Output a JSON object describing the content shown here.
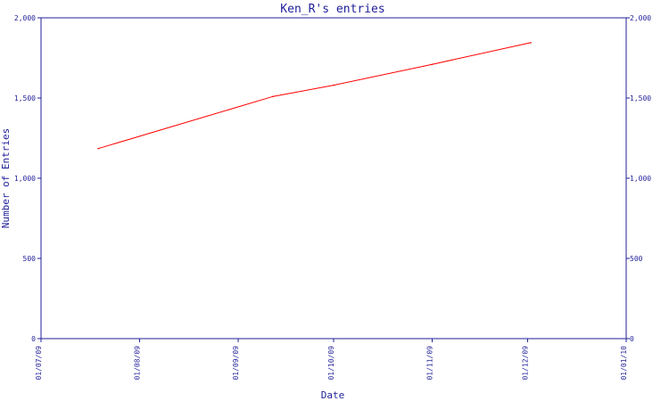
{
  "chart_data": {
    "type": "line",
    "title": "Ken_R's entries",
    "xlabel": "Date",
    "ylabel": "Number of Entries",
    "x_ticks": [
      "01/07/09",
      "01/08/09",
      "01/09/09",
      "01/10/09",
      "01/11/09",
      "01/12/09",
      "01/01/10"
    ],
    "y_ticks": [
      "0",
      "500",
      "1,000",
      "1,500",
      "2,000"
    ],
    "y_ticks_right": [
      "0",
      "500",
      "1,000",
      "1,500",
      "2,000"
    ],
    "xlim": [
      "2009-07-01",
      "2010-01-01"
    ],
    "ylim": [
      0,
      2000
    ],
    "grid": false,
    "series": [
      {
        "color": "#ff0000",
        "points": [
          {
            "x": "2009-07-19",
            "y": 1185
          },
          {
            "x": "2009-09-12",
            "y": 1510
          },
          {
            "x": "2009-10-01",
            "y": 1580
          },
          {
            "x": "2009-11-01",
            "y": 1710
          },
          {
            "x": "2009-12-02",
            "y": 1845
          }
        ]
      }
    ],
    "colors": {
      "axis": "#1f1f99",
      "line": "#ff0000",
      "text": "#1f1f99",
      "background": "#ffffff"
    }
  }
}
